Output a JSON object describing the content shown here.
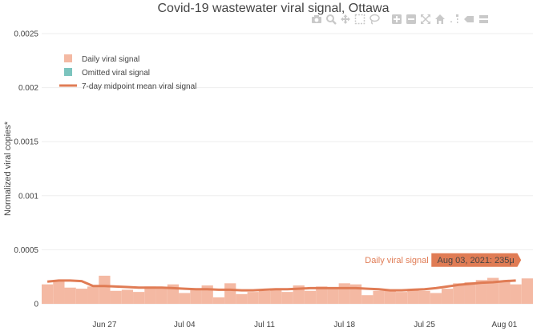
{
  "chart_data": {
    "type": "bar",
    "title": "Covid-19 wastewater viral signal, Ottawa",
    "ylabel": "Normalized viral copies*",
    "xlabel": "",
    "ylim": [
      0,
      0.0025
    ],
    "yticks": [
      "0",
      "0.0005",
      "0.001",
      "0.0015",
      "0.002",
      "0.0025"
    ],
    "xticks": [
      {
        "label": "Jun 27",
        "date": "2021-06-27"
      },
      {
        "label": "Jul 04",
        "date": "2021-07-04"
      },
      {
        "label": "Jul 11",
        "date": "2021-07-11"
      },
      {
        "label": "Jul 18",
        "date": "2021-07-18"
      },
      {
        "label": "Jul 25",
        "date": "2021-07-25"
      },
      {
        "label": "Aug 01",
        "date": "2021-08-01"
      }
    ],
    "xrange": [
      "2021-06-22",
      "2021-08-03"
    ],
    "grid": true,
    "legend_position": "top-left",
    "colors": {
      "daily": "#f4b9a3",
      "omitted": "#7cc4be",
      "mean": "#e07c55",
      "hover_bg": "#e07c55",
      "grid": "#eeeeee",
      "text": "#444444",
      "modebar": "#c9c9c9"
    },
    "legend": [
      {
        "name": "Daily viral signal",
        "kind": "square",
        "color": "#f4b9a3"
      },
      {
        "name": "Omitted viral signal",
        "kind": "square",
        "color": "#7cc4be"
      },
      {
        "name": "7-day midpoint mean viral signal",
        "kind": "line",
        "color": "#e07c55"
      }
    ],
    "series": [
      {
        "name": "Daily viral signal",
        "type": "bar",
        "dates": [
          "2021-06-22",
          "2021-06-23",
          "2021-06-24",
          "2021-06-25",
          "2021-06-26",
          "2021-06-27",
          "2021-06-28",
          "2021-06-29",
          "2021-06-30",
          "2021-07-01",
          "2021-07-02",
          "2021-07-03",
          "2021-07-04",
          "2021-07-05",
          "2021-07-06",
          "2021-07-07",
          "2021-07-08",
          "2021-07-09",
          "2021-07-10",
          "2021-07-11",
          "2021-07-12",
          "2021-07-13",
          "2021-07-14",
          "2021-07-15",
          "2021-07-16",
          "2021-07-17",
          "2021-07-18",
          "2021-07-19",
          "2021-07-20",
          "2021-07-21",
          "2021-07-22",
          "2021-07-23",
          "2021-07-24",
          "2021-07-25",
          "2021-07-26",
          "2021-07-27",
          "2021-07-28",
          "2021-07-29",
          "2021-07-30",
          "2021-07-31",
          "2021-08-01",
          "2021-08-02",
          "2021-08-03"
        ],
        "values": [
          0.00018,
          0.00022,
          0.00015,
          0.00014,
          0.00016,
          0.00026,
          0.00012,
          0.00013,
          0.00011,
          0.00016,
          0.00015,
          0.00018,
          0.0001,
          0.00013,
          0.00017,
          6e-05,
          0.00019,
          9e-05,
          0.00011,
          0.00012,
          0.00014,
          0.00011,
          0.00017,
          0.00012,
          0.00016,
          0.00015,
          0.00019,
          0.00018,
          8e-05,
          0.00012,
          0.00013,
          0.00011,
          0.00013,
          0.00012,
          0.0001,
          0.00014,
          0.00019,
          0.0002,
          0.00022,
          0.00024,
          0.00021,
          0.00018,
          0.000235
        ]
      },
      {
        "name": "7-day midpoint mean viral signal",
        "type": "line",
        "dates": [
          "2021-06-22",
          "2021-06-23",
          "2021-06-24",
          "2021-06-25",
          "2021-06-26",
          "2021-06-27",
          "2021-06-28",
          "2021-06-29",
          "2021-06-30",
          "2021-07-01",
          "2021-07-02",
          "2021-07-03",
          "2021-07-04",
          "2021-07-05",
          "2021-07-06",
          "2021-07-07",
          "2021-07-08",
          "2021-07-09",
          "2021-07-10",
          "2021-07-11",
          "2021-07-12",
          "2021-07-13",
          "2021-07-14",
          "2021-07-15",
          "2021-07-16",
          "2021-07-17",
          "2021-07-18",
          "2021-07-19",
          "2021-07-20",
          "2021-07-21",
          "2021-07-22",
          "2021-07-23",
          "2021-07-24",
          "2021-07-25",
          "2021-07-26",
          "2021-07-27",
          "2021-07-28",
          "2021-07-29",
          "2021-07-30",
          "2021-07-31",
          "2021-08-01",
          "2021-08-02"
        ],
        "values": [
          0.000205,
          0.000215,
          0.000215,
          0.00021,
          0.000165,
          0.000165,
          0.00016,
          0.000155,
          0.00015,
          0.00015,
          0.00015,
          0.000145,
          0.00014,
          0.000135,
          0.000135,
          0.00013,
          0.00013,
          0.000125,
          0.000125,
          0.00013,
          0.000135,
          0.000135,
          0.00014,
          0.000145,
          0.000145,
          0.000145,
          0.000145,
          0.000145,
          0.00014,
          0.000135,
          0.000125,
          0.000125,
          0.00013,
          0.000135,
          0.000145,
          0.00016,
          0.000175,
          0.000185,
          0.000195,
          0.0002,
          0.00021,
          0.000215
        ]
      }
    ],
    "hover": {
      "series_name": "Daily viral signal",
      "text": "Aug 03, 2021: 235μ",
      "date": "2021-08-03",
      "value": 0.000235
    },
    "modebar": [
      "camera-icon",
      "zoom-icon",
      "pan-icon",
      "box-select-icon",
      "lasso-icon",
      "zoom-in-icon",
      "zoom-out-icon",
      "autoscale-icon",
      "reset-axes-icon",
      "spike-lines-icon",
      "hover-closest-icon",
      "hover-compare-icon"
    ]
  }
}
